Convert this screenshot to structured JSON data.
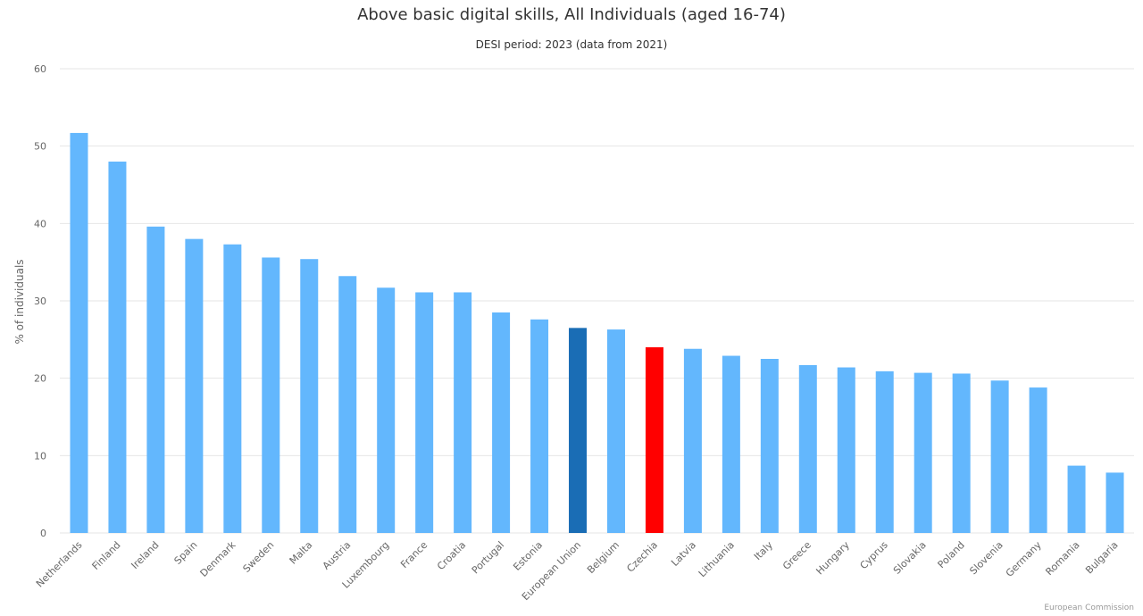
{
  "chart_data": {
    "type": "bar",
    "title": "Above basic digital skills, All Individuals (aged 16-74)",
    "subtitle": "DESI period: 2023 (data from 2021)",
    "xlabel": "",
    "ylabel": "% of individuals",
    "ylim": [
      0,
      60
    ],
    "yticks": [
      0,
      10,
      20,
      30,
      40,
      50,
      60
    ],
    "grid": true,
    "categories": [
      "Netherlands",
      "Finland",
      "Ireland",
      "Spain",
      "Denmark",
      "Sweden",
      "Malta",
      "Austria",
      "Luxembourg",
      "France",
      "Croatia",
      "Portugal",
      "Estonia",
      "European Union",
      "Belgium",
      "Czechia",
      "Latvia",
      "Lithuania",
      "Italy",
      "Greece",
      "Hungary",
      "Cyprus",
      "Slovakia",
      "Poland",
      "Slovenia",
      "Germany",
      "Romania",
      "Bulgaria"
    ],
    "values": [
      51.7,
      48.0,
      39.6,
      38.0,
      37.3,
      35.6,
      35.4,
      33.2,
      31.7,
      31.1,
      31.1,
      28.5,
      27.6,
      26.5,
      26.3,
      24.0,
      23.8,
      22.9,
      22.5,
      21.7,
      21.4,
      20.9,
      20.7,
      20.6,
      19.7,
      18.8,
      8.7,
      7.8
    ],
    "colors": {
      "default": "#63b7fd",
      "highlight_eu": "#1a6db5",
      "highlight_country": "#ff0000",
      "grid": "#e6e6e6",
      "axis_text": "#666666"
    },
    "highlights": {
      "European Union": "#1a6db5",
      "Czechia": "#ff0000"
    }
  },
  "credit": "European Commission"
}
